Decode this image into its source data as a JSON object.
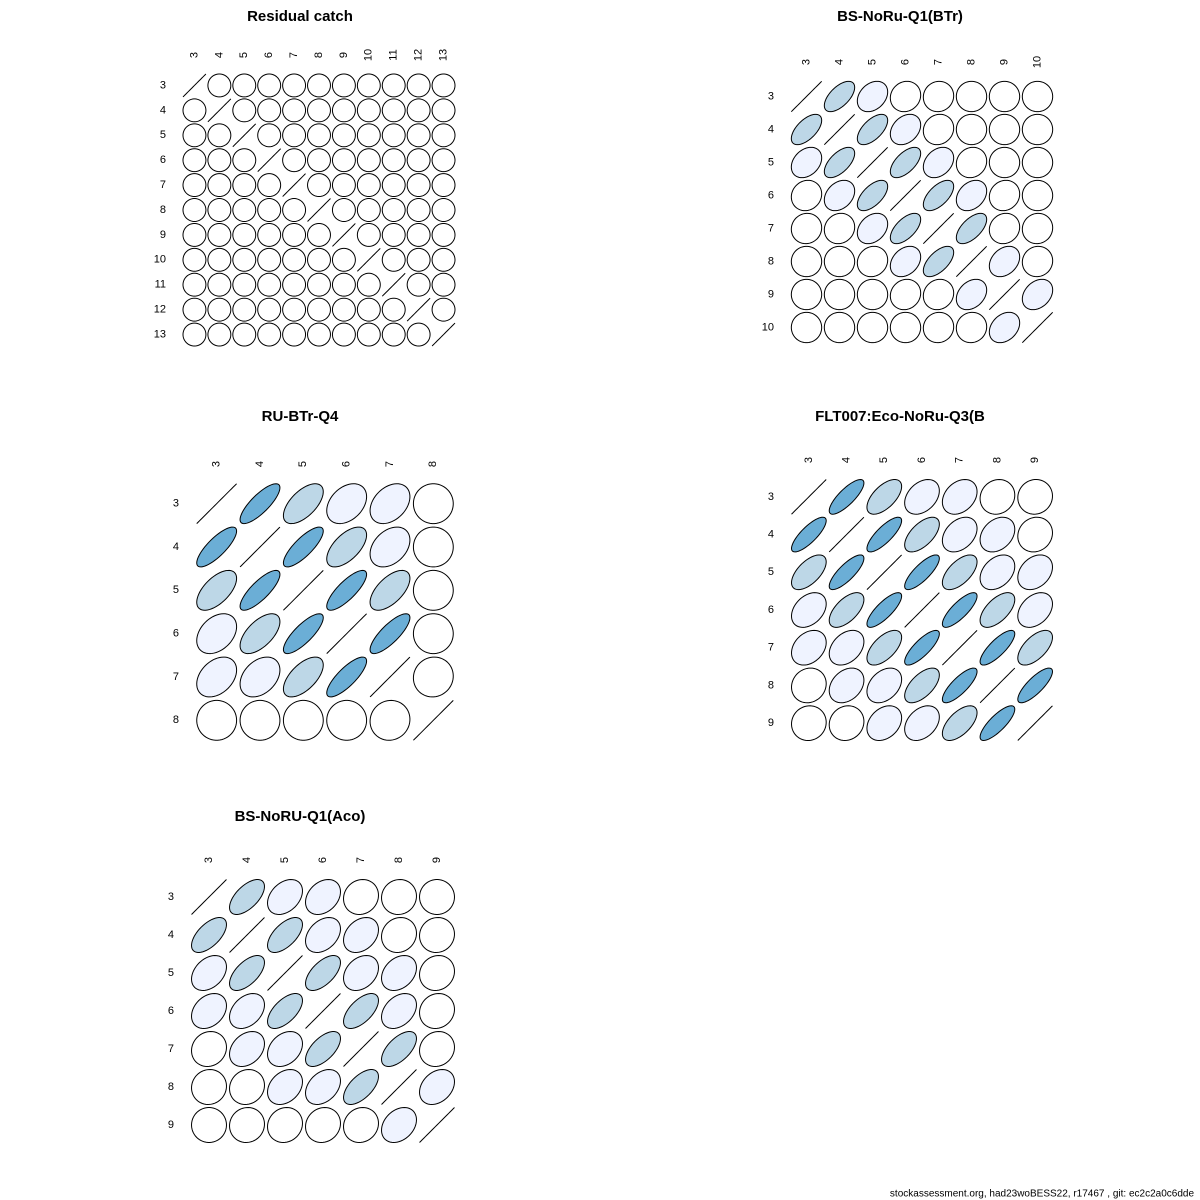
{
  "chart_data": [
    {
      "type": "correlation",
      "title": "Residual catch",
      "labels": [
        "3",
        "4",
        "5",
        "6",
        "7",
        "8",
        "9",
        "10",
        "11",
        "12",
        "13"
      ],
      "colors": [
        "#ffffff",
        "#eff3ff",
        "#bdd7e7",
        "#6baed6"
      ],
      "values": [
        [
          1,
          0,
          0,
          0,
          0,
          0,
          0,
          0,
          0,
          0,
          0
        ],
        [
          0,
          1,
          0,
          0,
          0,
          0,
          0,
          0,
          0,
          0,
          0
        ],
        [
          0,
          0,
          1,
          0,
          0,
          0,
          0,
          0,
          0,
          0,
          0
        ],
        [
          0,
          0,
          0,
          1,
          0,
          0,
          0,
          0,
          0,
          0,
          0
        ],
        [
          0,
          0,
          0,
          0,
          1,
          0,
          0,
          0,
          0,
          0,
          0
        ],
        [
          0,
          0,
          0,
          0,
          0,
          1,
          0,
          0,
          0,
          0,
          0
        ],
        [
          0,
          0,
          0,
          0,
          0,
          0,
          1,
          0,
          0,
          0,
          0
        ],
        [
          0,
          0,
          0,
          0,
          0,
          0,
          0,
          1,
          0,
          0,
          0
        ],
        [
          0,
          0,
          0,
          0,
          0,
          0,
          0,
          0,
          1,
          0,
          0
        ],
        [
          0,
          0,
          0,
          0,
          0,
          0,
          0,
          0,
          0,
          1,
          0
        ],
        [
          0,
          0,
          0,
          0,
          0,
          0,
          0,
          0,
          0,
          0,
          1
        ]
      ]
    },
    {
      "type": "correlation",
      "title": "BS-NoRu-Q1(BTr)",
      "labels": [
        "3",
        "4",
        "5",
        "6",
        "7",
        "8",
        "9",
        "10"
      ],
      "colors": [
        "#ffffff",
        "#eff3ff",
        "#bdd7e7",
        "#6baed6"
      ],
      "values": [
        [
          1,
          0.6,
          0.3,
          0.1,
          0.05,
          0,
          0,
          0
        ],
        [
          0.6,
          1,
          0.6,
          0.3,
          0.1,
          0,
          0,
          0
        ],
        [
          0.3,
          0.6,
          1,
          0.6,
          0.3,
          0.1,
          0,
          0
        ],
        [
          0.1,
          0.3,
          0.6,
          1,
          0.6,
          0.3,
          0.1,
          0
        ],
        [
          0.05,
          0.1,
          0.3,
          0.6,
          1,
          0.6,
          0.1,
          0.05
        ],
        [
          0,
          0,
          0.1,
          0.3,
          0.6,
          1,
          0.3,
          0.05
        ],
        [
          0,
          0,
          0,
          0.1,
          0.1,
          0.3,
          1,
          0.3
        ],
        [
          0,
          0,
          0,
          0,
          0.05,
          0.05,
          0.3,
          1
        ]
      ]
    },
    {
      "type": "correlation",
      "title": "RU-BTr-Q4",
      "labels": [
        "3",
        "4",
        "5",
        "6",
        "7",
        "8"
      ],
      "colors": [
        "#ffffff",
        "#eff3ff",
        "#bdd7e7",
        "#6baed6"
      ],
      "values": [
        [
          1,
          0.8,
          0.6,
          0.35,
          0.35,
          0
        ],
        [
          0.8,
          1,
          0.8,
          0.6,
          0.35,
          0
        ],
        [
          0.6,
          0.8,
          1,
          0.8,
          0.6,
          0
        ],
        [
          0.35,
          0.6,
          0.8,
          1,
          0.8,
          0
        ],
        [
          0.35,
          0.35,
          0.6,
          0.8,
          1,
          0.05
        ],
        [
          0,
          0,
          0,
          0,
          0.05,
          1
        ]
      ]
    },
    {
      "type": "correlation",
      "title": "FLT007:Eco-NoRu-Q3(B",
      "labels": [
        "3",
        "4",
        "5",
        "6",
        "7",
        "8",
        "9"
      ],
      "colors": [
        "#ffffff",
        "#eff3ff",
        "#bdd7e7",
        "#6baed6"
      ],
      "values": [
        [
          1,
          0.8,
          0.6,
          0.35,
          0.3,
          0.1,
          0.05
        ],
        [
          0.8,
          1,
          0.8,
          0.6,
          0.35,
          0.3,
          0.1
        ],
        [
          0.6,
          0.8,
          1,
          0.8,
          0.6,
          0.35,
          0.3
        ],
        [
          0.35,
          0.6,
          0.8,
          1,
          0.8,
          0.6,
          0.35
        ],
        [
          0.3,
          0.35,
          0.6,
          0.8,
          1,
          0.8,
          0.6
        ],
        [
          0.1,
          0.3,
          0.35,
          0.6,
          0.8,
          1,
          0.8
        ],
        [
          0.05,
          0.1,
          0.3,
          0.35,
          0.6,
          0.8,
          1
        ]
      ]
    },
    {
      "type": "correlation",
      "title": "BS-NoRU-Q1(Aco)",
      "labels": [
        "3",
        "4",
        "5",
        "6",
        "7",
        "8",
        "9"
      ],
      "colors": [
        "#ffffff",
        "#eff3ff",
        "#bdd7e7",
        "#6baed6"
      ],
      "values": [
        [
          1,
          0.6,
          0.35,
          0.3,
          0.1,
          0.05,
          0
        ],
        [
          0.6,
          1,
          0.6,
          0.35,
          0.3,
          0.1,
          0.05
        ],
        [
          0.35,
          0.6,
          1,
          0.6,
          0.3,
          0.3,
          0.1
        ],
        [
          0.3,
          0.35,
          0.6,
          1,
          0.6,
          0.35,
          0.1
        ],
        [
          0.1,
          0.3,
          0.3,
          0.6,
          1,
          0.6,
          0.1
        ],
        [
          0.05,
          0.1,
          0.3,
          0.35,
          0.6,
          1,
          0.3
        ],
        [
          0,
          0.05,
          0.1,
          0.1,
          0.1,
          0.3,
          1
        ]
      ]
    }
  ],
  "footer": "stockassessment.org, had23woBESS22, r17467 , git: ec2c2a0c6dde"
}
